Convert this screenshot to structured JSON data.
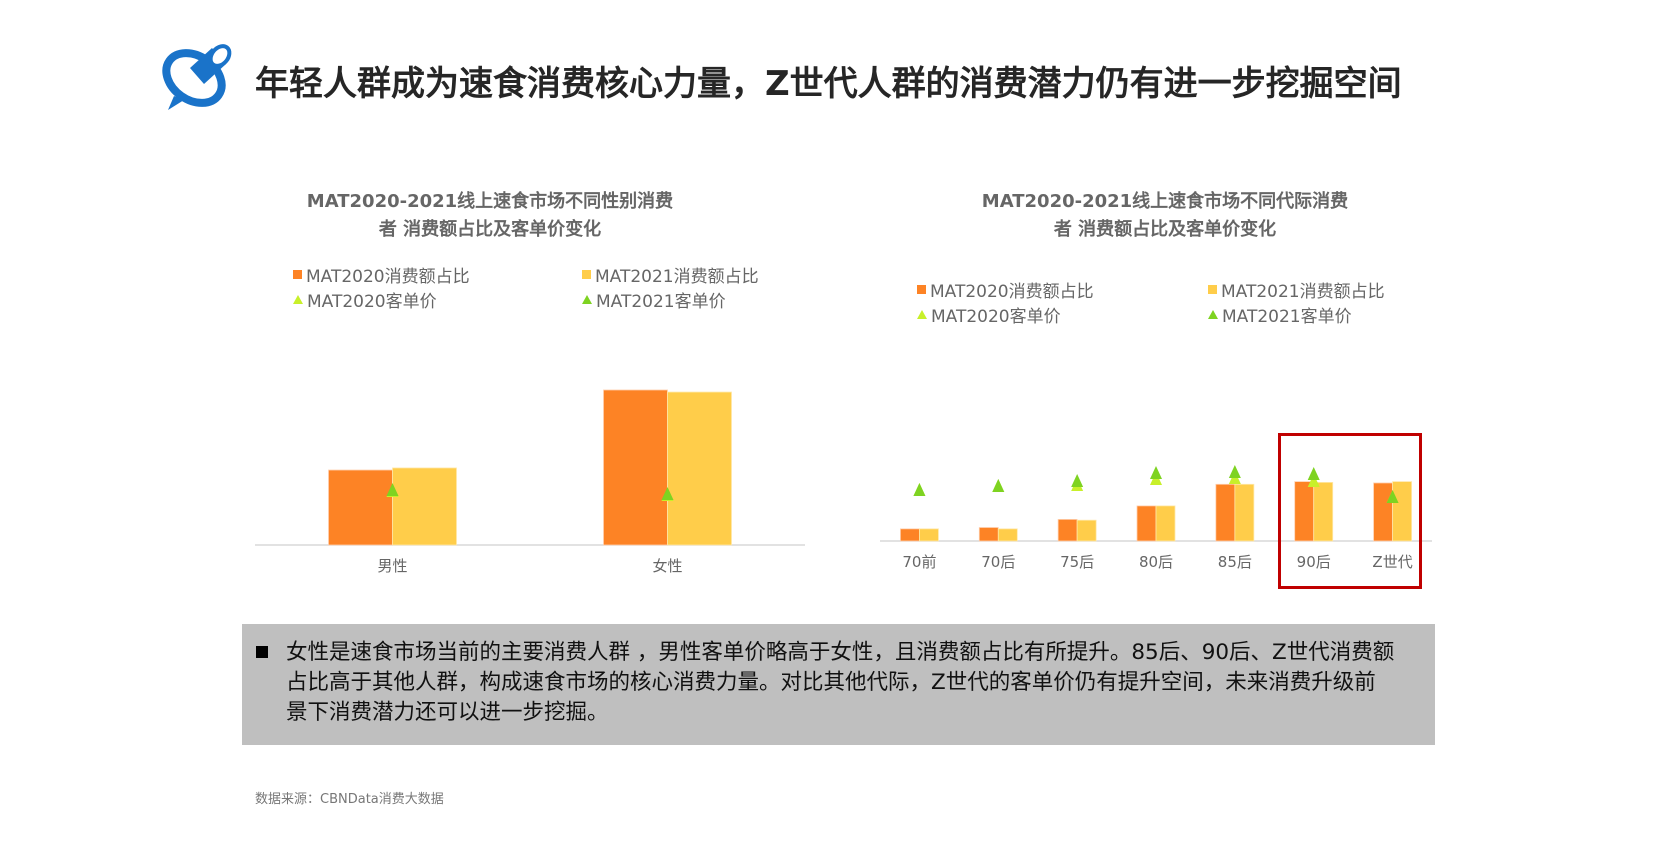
{
  "header": {
    "title": "年轻人群成为速食消费核心力量，Z世代人群的消费潜力仍有进一步挖掘空间",
    "logo_icon": "blue-telescope-logo"
  },
  "colors": {
    "mat2020_share": "#fd8325",
    "mat2021_share": "#ffcd4a",
    "mat2020_price": "#c8f02a",
    "mat2021_price": "#7ed321",
    "highlight": "#c00000",
    "summary_bg": "#bfbfbf"
  },
  "legend": {
    "share2020": "MAT2020消费额占比",
    "share2021": "MAT2021消费额占比",
    "price2020": "MAT2020客单价",
    "price2021": "MAT2021客单价"
  },
  "chart_data": [
    {
      "type": "bar",
      "title_line1": "MAT2020-2021线上速食市场不同性别消费",
      "title_line2": "者 消费额占比及客单价变化",
      "categories": [
        "男性",
        "女性"
      ],
      "series": [
        {
          "name": "MAT2020消费额占比",
          "kind": "bar",
          "values": [
            32.6,
            67.4
          ]
        },
        {
          "name": "MAT2021消费额占比",
          "kind": "bar",
          "values": [
            33.5,
            66.5
          ]
        },
        {
          "name": "MAT2020客单价",
          "kind": "marker",
          "values": [
            54,
            50
          ]
        },
        {
          "name": "MAT2021客单价",
          "kind": "marker",
          "values": [
            55,
            51
          ]
        }
      ],
      "share_unit": "%",
      "ylim": [
        0,
        80
      ],
      "price_ylim": [
        0,
        80
      ],
      "legend_position": "top",
      "grid": false
    },
    {
      "type": "bar",
      "title_line1": "MAT2020-2021线上速食市场不同代际消费",
      "title_line2": "者 消费额占比及客单价变化",
      "categories": [
        "70前",
        "70后",
        "75后",
        "80后",
        "85后",
        "90后",
        "Z世代"
      ],
      "series": [
        {
          "name": "MAT2020消费额占比",
          "kind": "bar",
          "values": [
            4.5,
            5,
            8,
            13,
            21,
            22,
            21.5
          ]
        },
        {
          "name": "MAT2021消费额占比",
          "kind": "bar",
          "values": [
            4.5,
            4.5,
            7.7,
            13,
            21,
            21.7,
            22
          ]
        },
        {
          "name": "MAT2020客单价",
          "kind": "marker",
          "values": [
            51,
            55,
            56,
            62,
            63,
            60,
            44
          ]
        },
        {
          "name": "MAT2021客单价",
          "kind": "marker",
          "values": [
            51,
            55,
            60,
            68,
            69,
            67,
            44
          ]
        }
      ],
      "share_unit": "%",
      "ylim": [
        0,
        80
      ],
      "price_ylim": [
        0,
        80
      ],
      "legend_position": "top",
      "grid": false,
      "highlight_category": "90后 – Z世代"
    }
  ],
  "summary": {
    "text": "女性是速食市场当前的主要消费人群 ，男性客单价略高于女性，且消费额占比有所提升。85后、90后、Z世代消费额占比高于其他人群，构成速食市场的核心消费力量。对比其他代际，Z世代的客单价仍有提升空间，未来消费升级前景下消费潜力还可以进一步挖掘。"
  },
  "source": "数据来源：CBNData消费大数据"
}
